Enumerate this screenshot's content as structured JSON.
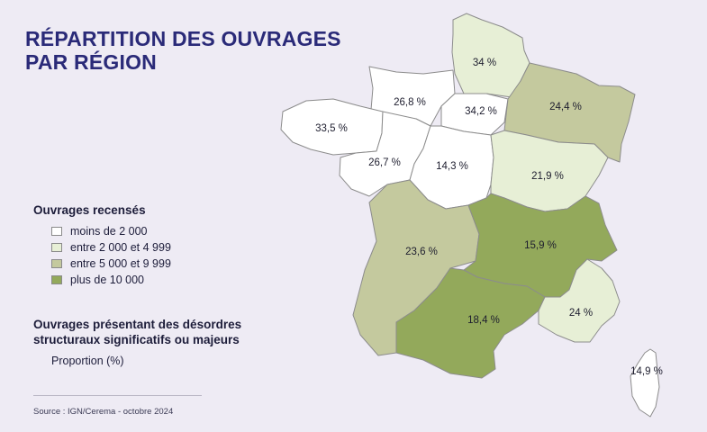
{
  "title": {
    "line1": "RÉPARTITION DES OUVRAGES",
    "line2": "PAR RÉGION"
  },
  "legend": {
    "title": "Ouvrages recensés",
    "items": [
      {
        "label": "moins de 2 000",
        "color": "#ffffff"
      },
      {
        "label": "entre 2 000 et 4 999",
        "color": "#e7efd6"
      },
      {
        "label": "entre 5 000 et 9 999",
        "color": "#c4c99e"
      },
      {
        "label": "plus de 10 000",
        "color": "#93a95b"
      }
    ]
  },
  "legend_proportion": {
    "title_line1": "Ouvrages présentant des désordres",
    "title_line2": "structuraux significatifs ou majeurs",
    "subtitle": "Proportion (%)"
  },
  "regions": {
    "hauts_de_france": {
      "value": "34 %",
      "class": 1
    },
    "normandie": {
      "value": "26,8 %",
      "class": 0
    },
    "ile_de_france": {
      "value": "34,2 %",
      "class": 0
    },
    "grand_est": {
      "value": "24,4 %",
      "class": 2
    },
    "bretagne": {
      "value": "33,5 %",
      "class": 0
    },
    "pays_de_la_loire": {
      "value": "26,7 %",
      "class": 0
    },
    "centre_val_de_loire": {
      "value": "14,3 %",
      "class": 0
    },
    "bourgogne_franche_comte": {
      "value": "21,9 %",
      "class": 1
    },
    "nouvelle_aquitaine": {
      "value": "23,6 %",
      "class": 2
    },
    "auvergne_rhone_alpes": {
      "value": "15,9 %",
      "class": 3
    },
    "occitanie": {
      "value": "18,4 %",
      "class": 3
    },
    "paca": {
      "value": "24 %",
      "class": 1
    },
    "corse": {
      "value": "14,9 %",
      "class": 0
    }
  },
  "source": "Source : IGN/Cerema - octobre 2024"
}
